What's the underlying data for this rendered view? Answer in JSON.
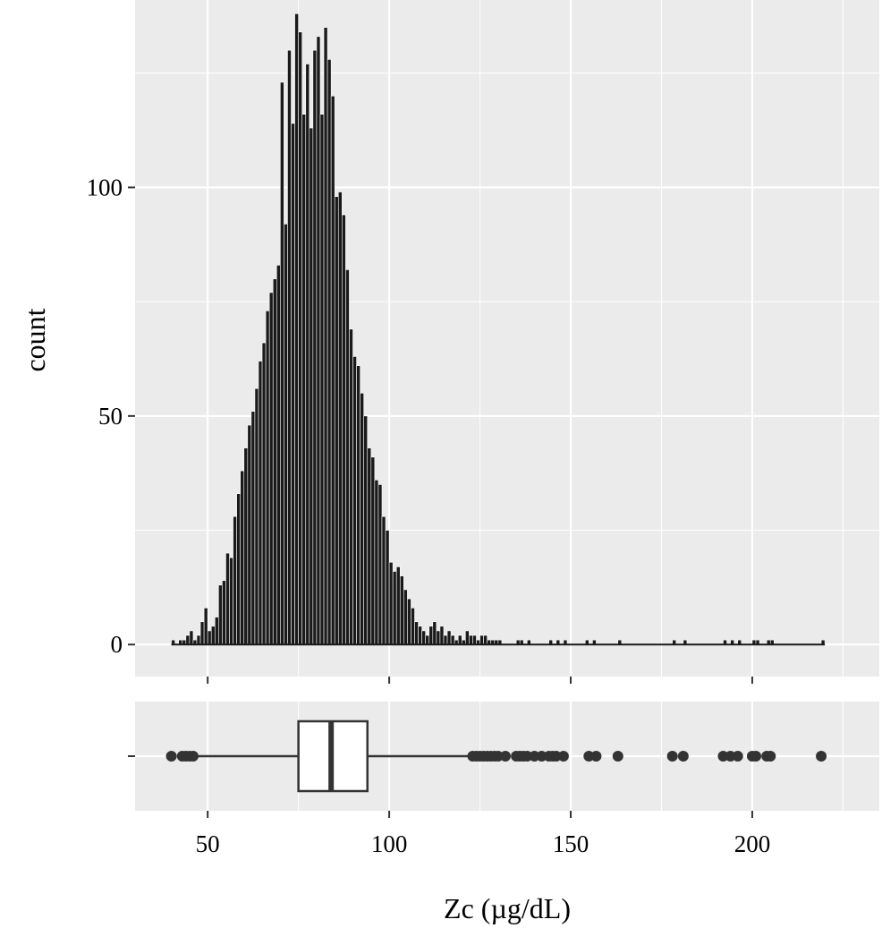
{
  "chart_data": [
    {
      "type": "histogram",
      "panel": "top",
      "title": "",
      "xlabel": "",
      "ylabel": "count",
      "xlim": [
        30,
        235
      ],
      "ylim": [
        -7,
        141
      ],
      "yticks": [
        0,
        50,
        100
      ],
      "ytick_labels": [
        "0",
        "50",
        "100"
      ],
      "grid": true,
      "bar_fill": "#1a1a1a",
      "bar_edge": "#ffffff",
      "bins": [
        {
          "x0": 40,
          "x1": 41,
          "count": 1
        },
        {
          "x0": 41,
          "x1": 42,
          "count": 0
        },
        {
          "x0": 42,
          "x1": 43,
          "count": 1
        },
        {
          "x0": 43,
          "x1": 44,
          "count": 1
        },
        {
          "x0": 44,
          "x1": 45,
          "count": 2
        },
        {
          "x0": 45,
          "x1": 46,
          "count": 3
        },
        {
          "x0": 46,
          "x1": 47,
          "count": 1
        },
        {
          "x0": 47,
          "x1": 48,
          "count": 2
        },
        {
          "x0": 48,
          "x1": 49,
          "count": 5
        },
        {
          "x0": 49,
          "x1": 50,
          "count": 8
        },
        {
          "x0": 50,
          "x1": 51,
          "count": 3
        },
        {
          "x0": 51,
          "x1": 52,
          "count": 4
        },
        {
          "x0": 52,
          "x1": 53,
          "count": 6
        },
        {
          "x0": 53,
          "x1": 54,
          "count": 13
        },
        {
          "x0": 54,
          "x1": 55,
          "count": 14
        },
        {
          "x0": 55,
          "x1": 56,
          "count": 20
        },
        {
          "x0": 56,
          "x1": 57,
          "count": 19
        },
        {
          "x0": 57,
          "x1": 58,
          "count": 28
        },
        {
          "x0": 58,
          "x1": 59,
          "count": 33
        },
        {
          "x0": 59,
          "x1": 60,
          "count": 38
        },
        {
          "x0": 60,
          "x1": 61,
          "count": 43
        },
        {
          "x0": 61,
          "x1": 62,
          "count": 48
        },
        {
          "x0": 62,
          "x1": 63,
          "count": 51
        },
        {
          "x0": 63,
          "x1": 64,
          "count": 56
        },
        {
          "x0": 64,
          "x1": 65,
          "count": 62
        },
        {
          "x0": 65,
          "x1": 66,
          "count": 66
        },
        {
          "x0": 66,
          "x1": 67,
          "count": 73
        },
        {
          "x0": 67,
          "x1": 68,
          "count": 77
        },
        {
          "x0": 68,
          "x1": 69,
          "count": 80
        },
        {
          "x0": 69,
          "x1": 70,
          "count": 83
        },
        {
          "x0": 70,
          "x1": 71,
          "count": 123
        },
        {
          "x0": 71,
          "x1": 72,
          "count": 92
        },
        {
          "x0": 72,
          "x1": 73,
          "count": 130
        },
        {
          "x0": 73,
          "x1": 74,
          "count": 114
        },
        {
          "x0": 74,
          "x1": 75,
          "count": 138
        },
        {
          "x0": 75,
          "x1": 76,
          "count": 134
        },
        {
          "x0": 76,
          "x1": 77,
          "count": 116
        },
        {
          "x0": 77,
          "x1": 78,
          "count": 127
        },
        {
          "x0": 78,
          "x1": 79,
          "count": 113
        },
        {
          "x0": 79,
          "x1": 80,
          "count": 130
        },
        {
          "x0": 80,
          "x1": 81,
          "count": 133
        },
        {
          "x0": 81,
          "x1": 82,
          "count": 116
        },
        {
          "x0": 82,
          "x1": 83,
          "count": 135
        },
        {
          "x0": 83,
          "x1": 84,
          "count": 128
        },
        {
          "x0": 84,
          "x1": 85,
          "count": 120
        },
        {
          "x0": 85,
          "x1": 86,
          "count": 98
        },
        {
          "x0": 86,
          "x1": 87,
          "count": 99
        },
        {
          "x0": 87,
          "x1": 88,
          "count": 94
        },
        {
          "x0": 88,
          "x1": 89,
          "count": 82
        },
        {
          "x0": 89,
          "x1": 90,
          "count": 69
        },
        {
          "x0": 90,
          "x1": 91,
          "count": 63
        },
        {
          "x0": 91,
          "x1": 92,
          "count": 61
        },
        {
          "x0": 92,
          "x1": 93,
          "count": 55
        },
        {
          "x0": 93,
          "x1": 94,
          "count": 50
        },
        {
          "x0": 94,
          "x1": 95,
          "count": 43
        },
        {
          "x0": 95,
          "x1": 96,
          "count": 41
        },
        {
          "x0": 96,
          "x1": 97,
          "count": 36
        },
        {
          "x0": 97,
          "x1": 98,
          "count": 35
        },
        {
          "x0": 98,
          "x1": 99,
          "count": 28
        },
        {
          "x0": 99,
          "x1": 100,
          "count": 25
        },
        {
          "x0": 100,
          "x1": 101,
          "count": 18
        },
        {
          "x0": 101,
          "x1": 102,
          "count": 16
        },
        {
          "x0": 102,
          "x1": 103,
          "count": 17
        },
        {
          "x0": 103,
          "x1": 104,
          "count": 15
        },
        {
          "x0": 104,
          "x1": 105,
          "count": 12
        },
        {
          "x0": 105,
          "x1": 106,
          "count": 10
        },
        {
          "x0": 106,
          "x1": 107,
          "count": 8
        },
        {
          "x0": 107,
          "x1": 108,
          "count": 5
        },
        {
          "x0": 108,
          "x1": 109,
          "count": 4
        },
        {
          "x0": 109,
          "x1": 110,
          "count": 3
        },
        {
          "x0": 110,
          "x1": 111,
          "count": 2
        },
        {
          "x0": 111,
          "x1": 112,
          "count": 4
        },
        {
          "x0": 112,
          "x1": 113,
          "count": 5
        },
        {
          "x0": 113,
          "x1": 114,
          "count": 3
        },
        {
          "x0": 114,
          "x1": 115,
          "count": 4
        },
        {
          "x0": 115,
          "x1": 116,
          "count": 2
        },
        {
          "x0": 116,
          "x1": 117,
          "count": 3
        },
        {
          "x0": 117,
          "x1": 118,
          "count": 2
        },
        {
          "x0": 118,
          "x1": 119,
          "count": 1
        },
        {
          "x0": 119,
          "x1": 120,
          "count": 2
        },
        {
          "x0": 120,
          "x1": 121,
          "count": 1
        },
        {
          "x0": 121,
          "x1": 122,
          "count": 3
        },
        {
          "x0": 122,
          "x1": 123,
          "count": 2
        },
        {
          "x0": 123,
          "x1": 124,
          "count": 2
        },
        {
          "x0": 124,
          "x1": 125,
          "count": 1
        },
        {
          "x0": 125,
          "x1": 126,
          "count": 2
        },
        {
          "x0": 126,
          "x1": 127,
          "count": 2
        },
        {
          "x0": 127,
          "x1": 128,
          "count": 1
        },
        {
          "x0": 128,
          "x1": 129,
          "count": 1
        },
        {
          "x0": 129,
          "x1": 130,
          "count": 1
        },
        {
          "x0": 130,
          "x1": 131,
          "count": 1
        },
        {
          "x0": 135,
          "x1": 136,
          "count": 1
        },
        {
          "x0": 136,
          "x1": 137,
          "count": 1
        },
        {
          "x0": 138,
          "x1": 139,
          "count": 1
        },
        {
          "x0": 140,
          "x1": 141,
          "count": 0
        },
        {
          "x0": 144,
          "x1": 145,
          "count": 1
        },
        {
          "x0": 146,
          "x1": 147,
          "count": 1
        },
        {
          "x0": 148,
          "x1": 149,
          "count": 1
        },
        {
          "x0": 150,
          "x1": 151,
          "count": 0
        },
        {
          "x0": 154,
          "x1": 155,
          "count": 1
        },
        {
          "x0": 156,
          "x1": 157,
          "count": 1
        },
        {
          "x0": 160,
          "x1": 161,
          "count": 0
        },
        {
          "x0": 163,
          "x1": 164,
          "count": 1
        },
        {
          "x0": 170,
          "x1": 171,
          "count": 0
        },
        {
          "x0": 178,
          "x1": 179,
          "count": 1
        },
        {
          "x0": 181,
          "x1": 182,
          "count": 1
        },
        {
          "x0": 192,
          "x1": 193,
          "count": 1
        },
        {
          "x0": 194,
          "x1": 195,
          "count": 1
        },
        {
          "x0": 196,
          "x1": 197,
          "count": 1
        },
        {
          "x0": 200,
          "x1": 201,
          "count": 1
        },
        {
          "x0": 201,
          "x1": 202,
          "count": 1
        },
        {
          "x0": 204,
          "x1": 205,
          "count": 1
        },
        {
          "x0": 205,
          "x1": 206,
          "count": 1
        },
        {
          "x0": 219,
          "x1": 220,
          "count": 1
        }
      ]
    },
    {
      "type": "boxplot",
      "panel": "bottom",
      "xlabel": "Zc (µg/dL)",
      "xlim": [
        30,
        235
      ],
      "xticks": [
        50,
        100,
        150,
        200
      ],
      "xtick_labels": [
        "50",
        "100",
        "150",
        "200"
      ],
      "ytick_labels": [
        "-"
      ],
      "grid": true,
      "whisker_low": 47,
      "q1": 75,
      "median": 84,
      "q3": 94,
      "whisker_high": 122,
      "outliers": [
        40,
        43,
        44,
        45,
        46,
        123,
        124,
        125,
        126,
        127,
        128,
        129,
        130,
        132,
        135,
        136,
        137,
        138,
        140,
        142,
        144,
        145,
        146,
        148,
        155,
        157,
        163,
        178,
        181,
        192,
        194,
        196,
        200,
        201,
        204,
        205,
        219
      ]
    }
  ],
  "colors": {
    "panel_background": "#ebebeb",
    "grid_major": "#ffffff",
    "bar_fill": "#1a1a1a",
    "box_fill": "#ffffff",
    "box_line": "#333333",
    "point": "#333333"
  }
}
